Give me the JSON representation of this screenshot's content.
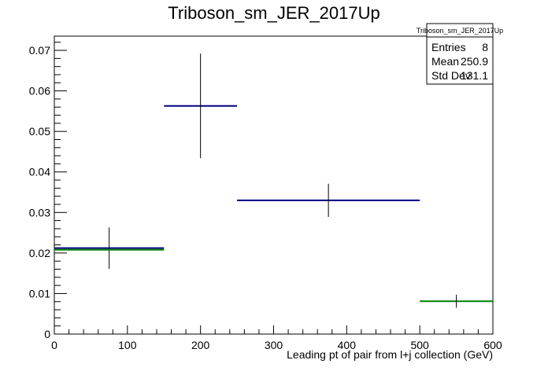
{
  "chart_data": {
    "type": "histogram",
    "title": "Triboson_sm_JER_2017Up",
    "xlabel": "Leading pt of pair from l+j collection (GeV)",
    "ylabel": "",
    "xlim": [
      0,
      600
    ],
    "ylim": [
      0,
      0.0735
    ],
    "xticks": [
      0,
      100,
      200,
      300,
      400,
      500,
      600
    ],
    "yticks": [
      0,
      0.01,
      0.02,
      0.03,
      0.04,
      0.05,
      0.06,
      0.07
    ],
    "xtick_labels": [
      "0",
      "100",
      "200",
      "300",
      "400",
      "500",
      "600"
    ],
    "ytick_labels": [
      "0",
      "0.01",
      "0.02",
      "0.03",
      "0.04",
      "0.05",
      "0.06",
      "0.07"
    ],
    "grid": false,
    "series": [
      {
        "color": "#000080",
        "bins": [
          {
            "xlow": 0,
            "xhigh": 150,
            "x": 75,
            "y": 0.0212,
            "err": 0.0051
          },
          {
            "xlow": 150,
            "xhigh": 250,
            "x": 200,
            "y": 0.0563,
            "err": 0.0129
          },
          {
            "xlow": 250,
            "xhigh": 500,
            "x": 375,
            "y": 0.033,
            "err": 0.0041
          }
        ]
      },
      {
        "color": "#008000",
        "bins": [
          {
            "xlow": 0,
            "xhigh": 150,
            "x": 75,
            "y": 0.0208,
            "err": 0
          },
          {
            "xlow": 500,
            "xhigh": 600,
            "x": 550,
            "y": 0.0081,
            "err": 0.0016
          }
        ]
      }
    ],
    "stats_box": {
      "title": "Triboson_sm_JER_2017Up",
      "rows": [
        {
          "label": "Entries",
          "value": "8"
        },
        {
          "label": "Mean",
          "value": "250.9"
        },
        {
          "label": "Std Dev",
          "value": "131.1"
        }
      ]
    }
  }
}
